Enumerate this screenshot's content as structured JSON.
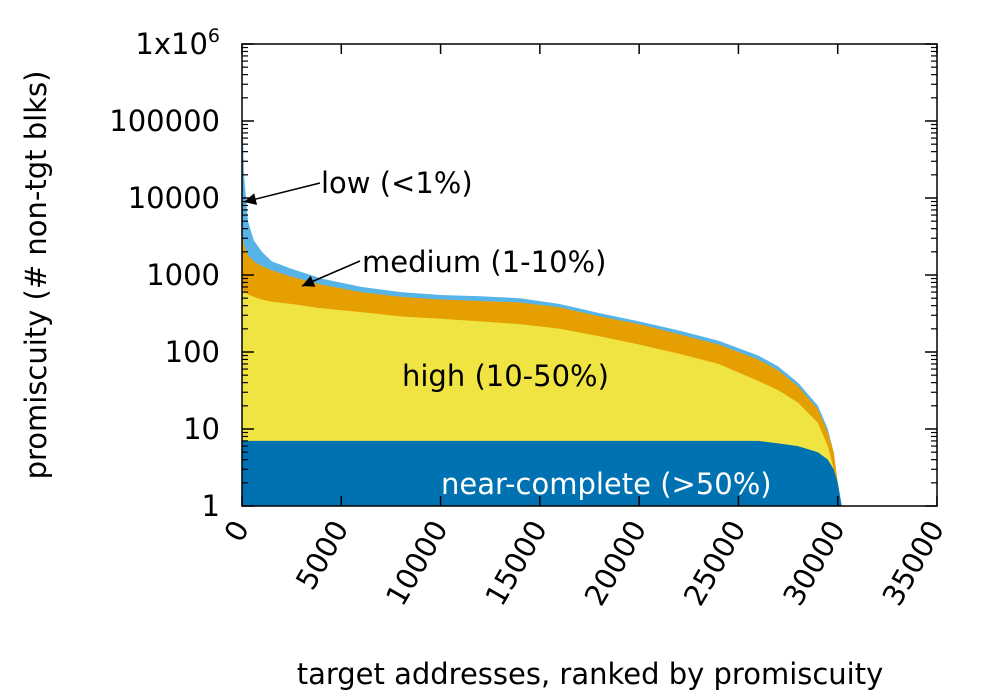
{
  "chart_data": {
    "type": "area",
    "xlabel": "target addresses, ranked by promiscuity",
    "ylabel": "promiscuity (# non-tgt blks)",
    "xlim": [
      0,
      35000
    ],
    "ylim": [
      1,
      1000000
    ],
    "y_scale": "log",
    "x_ticks": [
      "0",
      "5000",
      "10000",
      "15000",
      "20000",
      "25000",
      "30000",
      "35000"
    ],
    "y_ticks": [
      {
        "value": 1,
        "label": "1"
      },
      {
        "value": 10,
        "label": "10"
      },
      {
        "value": 100,
        "label": "100"
      },
      {
        "value": 1000,
        "label": "1000"
      },
      {
        "value": 10000,
        "label": "10000"
      },
      {
        "value": 100000,
        "label": "100000"
      },
      {
        "value": 1000000,
        "label": "1x10"
      }
    ],
    "y_top_label_superscript": "6",
    "x": [
      0,
      100,
      300,
      600,
      1000,
      1500,
      2500,
      4000,
      6000,
      8000,
      10000,
      12000,
      14000,
      16000,
      18000,
      20000,
      22000,
      24000,
      26000,
      27000,
      28000,
      29000,
      29500,
      29800,
      30000,
      30200
    ],
    "series": [
      {
        "name": "low (<1%)",
        "color": "#56b4e9",
        "values": [
          200000,
          20000,
          5000,
          2800,
          2000,
          1500,
          1200,
          900,
          700,
          600,
          550,
          530,
          500,
          420,
          320,
          250,
          190,
          140,
          90,
          65,
          40,
          20,
          10,
          5,
          2,
          1
        ]
      },
      {
        "name": "medium (1-10%)",
        "color": "#e69f00",
        "values": [
          3500,
          2500,
          1800,
          1500,
          1300,
          1150,
          950,
          750,
          600,
          520,
          480,
          460,
          440,
          380,
          290,
          230,
          170,
          125,
          80,
          58,
          36,
          18,
          9,
          5,
          2,
          1
        ]
      },
      {
        "name": "high (10-50%)",
        "color": "#f0e442",
        "values": [
          700,
          600,
          560,
          520,
          480,
          450,
          420,
          370,
          330,
          290,
          270,
          250,
          230,
          200,
          160,
          125,
          95,
          70,
          42,
          32,
          22,
          12,
          6,
          3,
          1.5,
          1
        ]
      },
      {
        "name": "near-complete (>50%)",
        "color": "#0072b2",
        "values": [
          7,
          7,
          7,
          7,
          7,
          7,
          7,
          7,
          7,
          7,
          7,
          7,
          7,
          7,
          7,
          7,
          7,
          7,
          7,
          6.5,
          6,
          5,
          4,
          3,
          2,
          1
        ]
      }
    ],
    "annotations": [
      {
        "text": "low (<1%)",
        "arrow_to": [
          0,
          9000
        ]
      },
      {
        "text": "medium (1-10%)",
        "arrow_to": [
          3000,
          700
        ]
      },
      {
        "text": "high (10-50%)"
      },
      {
        "text": "near-complete (>50%)"
      }
    ],
    "grid": false,
    "legend": "none"
  }
}
